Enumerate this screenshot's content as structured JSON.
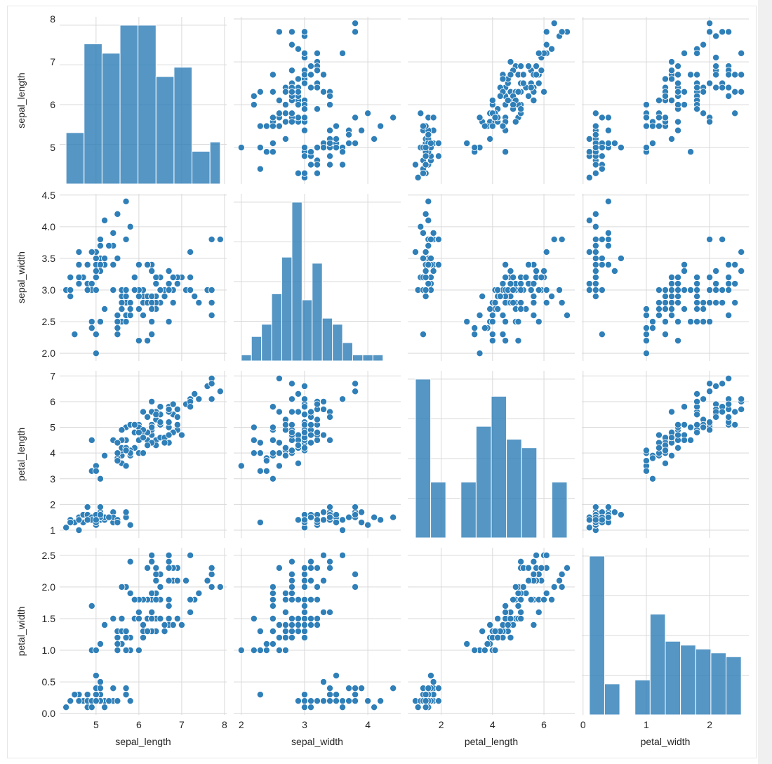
{
  "colors": {
    "accent": "#2f7fb8",
    "grid": "#d9d9d9",
    "bar_edge": "#ffffff",
    "background": "#ffffff"
  },
  "chart_data": {
    "type": "scatter",
    "variables": [
      "sepal_length",
      "sepal_width",
      "petal_length",
      "petal_width"
    ],
    "ranges": {
      "sepal_length": [
        4.15,
        8.05
      ],
      "sepal_width": [
        1.88,
        4.52
      ],
      "petal_length": [
        0.7,
        7.2
      ],
      "petal_width": [
        -0.02,
        2.62
      ]
    },
    "ticks": {
      "sepal_length": [
        5,
        6,
        7,
        8
      ],
      "sepal_width": [
        2,
        3,
        4
      ],
      "petal_length": [
        2,
        4,
        6
      ],
      "petal_width": [
        0,
        1,
        2
      ]
    },
    "ticks_y": {
      "sepal_length": [
        "5",
        "6",
        "7",
        "8"
      ],
      "sepal_width": [
        "2.0",
        "2.5",
        "3.0",
        "3.5",
        "4.0",
        "4.5"
      ],
      "petal_length": [
        "1",
        "2",
        "3",
        "4",
        "5",
        "6",
        "7"
      ],
      "petal_width": [
        "0.0",
        "0.5",
        "1.0",
        "1.5",
        "2.0",
        "2.5"
      ]
    },
    "histograms": {
      "sepal_length": {
        "edges": [
          4.3,
          4.72,
          5.14,
          5.56,
          5.98,
          6.4,
          6.82,
          7.24,
          7.66,
          7.9
        ],
        "counts": [
          11,
          30,
          28,
          34,
          34,
          23,
          25,
          7,
          9
        ]
      },
      "sepal_width": {
        "edges": [
          2.0,
          2.16,
          2.32,
          2.48,
          2.64,
          2.8,
          2.96,
          3.12,
          3.28,
          3.44,
          3.6,
          3.76,
          3.92,
          4.08,
          4.24,
          4.4
        ],
        "counts": [
          1,
          4,
          6,
          11,
          17,
          26,
          10,
          16,
          7,
          6,
          3,
          1,
          1,
          1,
          0
        ]
      },
      "petal_length": {
        "edges": [
          1.0,
          1.59,
          2.18,
          2.77,
          3.36,
          3.95,
          4.54,
          5.13,
          5.72,
          6.31,
          6.9
        ],
        "counts": [
          37,
          13,
          0,
          13,
          26,
          33,
          23,
          21,
          0,
          13
        ]
      },
      "petal_width": {
        "edges": [
          0.1,
          0.34,
          0.58,
          0.82,
          1.06,
          1.3,
          1.54,
          1.78,
          2.02,
          2.26,
          2.5
        ],
        "counts": [
          41,
          8,
          0,
          9,
          26,
          19,
          18,
          17,
          16,
          15
        ]
      }
    },
    "points": [
      [
        5.1,
        3.5,
        1.4,
        0.2
      ],
      [
        4.9,
        3.0,
        1.4,
        0.2
      ],
      [
        4.7,
        3.2,
        1.3,
        0.2
      ],
      [
        4.6,
        3.1,
        1.5,
        0.2
      ],
      [
        5.0,
        3.6,
        1.4,
        0.2
      ],
      [
        5.4,
        3.9,
        1.7,
        0.4
      ],
      [
        4.6,
        3.4,
        1.4,
        0.3
      ],
      [
        5.0,
        3.4,
        1.5,
        0.2
      ],
      [
        4.4,
        2.9,
        1.4,
        0.2
      ],
      [
        4.9,
        3.1,
        1.5,
        0.1
      ],
      [
        5.4,
        3.7,
        1.5,
        0.2
      ],
      [
        4.8,
        3.4,
        1.6,
        0.2
      ],
      [
        4.8,
        3.0,
        1.4,
        0.1
      ],
      [
        4.3,
        3.0,
        1.1,
        0.1
      ],
      [
        5.8,
        4.0,
        1.2,
        0.2
      ],
      [
        5.7,
        4.4,
        1.5,
        0.4
      ],
      [
        5.4,
        3.9,
        1.3,
        0.4
      ],
      [
        5.1,
        3.5,
        1.4,
        0.3
      ],
      [
        5.7,
        3.8,
        1.7,
        0.3
      ],
      [
        5.1,
        3.8,
        1.5,
        0.3
      ],
      [
        5.4,
        3.4,
        1.7,
        0.2
      ],
      [
        5.1,
        3.7,
        1.5,
        0.4
      ],
      [
        4.6,
        3.6,
        1.0,
        0.2
      ],
      [
        5.1,
        3.3,
        1.7,
        0.5
      ],
      [
        4.8,
        3.4,
        1.9,
        0.2
      ],
      [
        5.0,
        3.0,
        1.6,
        0.2
      ],
      [
        5.0,
        3.4,
        1.6,
        0.4
      ],
      [
        5.2,
        3.5,
        1.5,
        0.2
      ],
      [
        5.2,
        3.4,
        1.4,
        0.2
      ],
      [
        4.7,
        3.2,
        1.6,
        0.2
      ],
      [
        4.8,
        3.1,
        1.6,
        0.2
      ],
      [
        5.4,
        3.4,
        1.5,
        0.4
      ],
      [
        5.2,
        4.1,
        1.5,
        0.1
      ],
      [
        5.5,
        4.2,
        1.4,
        0.2
      ],
      [
        4.9,
        3.1,
        1.5,
        0.2
      ],
      [
        5.0,
        3.2,
        1.2,
        0.2
      ],
      [
        5.5,
        3.5,
        1.3,
        0.2
      ],
      [
        4.9,
        3.6,
        1.4,
        0.1
      ],
      [
        4.4,
        3.0,
        1.3,
        0.2
      ],
      [
        5.1,
        3.4,
        1.5,
        0.2
      ],
      [
        5.0,
        3.5,
        1.3,
        0.3
      ],
      [
        4.5,
        2.3,
        1.3,
        0.3
      ],
      [
        4.4,
        3.2,
        1.3,
        0.2
      ],
      [
        5.0,
        3.5,
        1.6,
        0.6
      ],
      [
        5.1,
        3.8,
        1.9,
        0.4
      ],
      [
        4.8,
        3.0,
        1.4,
        0.3
      ],
      [
        5.1,
        3.8,
        1.6,
        0.2
      ],
      [
        4.6,
        3.2,
        1.4,
        0.2
      ],
      [
        5.3,
        3.7,
        1.5,
        0.2
      ],
      [
        5.0,
        3.3,
        1.4,
        0.2
      ],
      [
        7.0,
        3.2,
        4.7,
        1.4
      ],
      [
        6.4,
        3.2,
        4.5,
        1.5
      ],
      [
        6.9,
        3.1,
        4.9,
        1.5
      ],
      [
        5.5,
        2.3,
        4.0,
        1.3
      ],
      [
        6.5,
        2.8,
        4.6,
        1.5
      ],
      [
        5.7,
        2.8,
        4.5,
        1.3
      ],
      [
        6.3,
        3.3,
        4.7,
        1.6
      ],
      [
        4.9,
        2.4,
        3.3,
        1.0
      ],
      [
        6.6,
        2.9,
        4.6,
        1.3
      ],
      [
        5.2,
        2.7,
        3.9,
        1.4
      ],
      [
        5.0,
        2.0,
        3.5,
        1.0
      ],
      [
        5.9,
        3.0,
        4.2,
        1.5
      ],
      [
        6.0,
        2.2,
        4.0,
        1.0
      ],
      [
        6.1,
        2.9,
        4.7,
        1.4
      ],
      [
        5.6,
        2.9,
        3.6,
        1.3
      ],
      [
        6.7,
        3.1,
        4.4,
        1.4
      ],
      [
        5.6,
        3.0,
        4.5,
        1.5
      ],
      [
        5.8,
        2.7,
        4.1,
        1.0
      ],
      [
        6.2,
        2.2,
        4.5,
        1.5
      ],
      [
        5.6,
        2.5,
        3.9,
        1.1
      ],
      [
        5.9,
        3.2,
        4.8,
        1.8
      ],
      [
        6.1,
        2.8,
        4.0,
        1.3
      ],
      [
        6.3,
        2.5,
        4.9,
        1.5
      ],
      [
        6.1,
        2.8,
        4.7,
        1.2
      ],
      [
        6.4,
        2.9,
        4.3,
        1.3
      ],
      [
        6.6,
        3.0,
        4.4,
        1.4
      ],
      [
        6.8,
        2.8,
        4.8,
        1.4
      ],
      [
        6.7,
        3.0,
        5.0,
        1.7
      ],
      [
        6.0,
        2.9,
        4.5,
        1.5
      ],
      [
        5.7,
        2.6,
        3.5,
        1.0
      ],
      [
        5.5,
        2.4,
        3.8,
        1.1
      ],
      [
        5.5,
        2.4,
        3.7,
        1.0
      ],
      [
        5.8,
        2.7,
        3.9,
        1.2
      ],
      [
        6.0,
        2.7,
        5.1,
        1.6
      ],
      [
        5.4,
        3.0,
        4.5,
        1.5
      ],
      [
        6.0,
        3.4,
        4.5,
        1.6
      ],
      [
        6.7,
        3.1,
        4.7,
        1.5
      ],
      [
        6.3,
        2.3,
        4.4,
        1.3
      ],
      [
        5.6,
        3.0,
        4.1,
        1.3
      ],
      [
        5.5,
        2.5,
        4.0,
        1.3
      ],
      [
        5.5,
        2.6,
        4.4,
        1.2
      ],
      [
        6.1,
        3.0,
        4.6,
        1.4
      ],
      [
        5.8,
        2.6,
        4.0,
        1.2
      ],
      [
        5.0,
        2.3,
        3.3,
        1.0
      ],
      [
        5.6,
        2.7,
        4.2,
        1.3
      ],
      [
        5.7,
        3.0,
        4.2,
        1.2
      ],
      [
        5.7,
        2.9,
        4.2,
        1.3
      ],
      [
        6.2,
        2.9,
        4.3,
        1.3
      ],
      [
        5.1,
        2.5,
        3.0,
        1.1
      ],
      [
        5.7,
        2.8,
        4.1,
        1.3
      ],
      [
        6.3,
        3.3,
        6.0,
        2.5
      ],
      [
        5.8,
        2.7,
        5.1,
        1.9
      ],
      [
        7.1,
        3.0,
        5.9,
        2.1
      ],
      [
        6.3,
        2.9,
        5.6,
        1.8
      ],
      [
        6.5,
        3.0,
        5.8,
        2.2
      ],
      [
        7.6,
        3.0,
        6.6,
        2.1
      ],
      [
        4.9,
        2.5,
        4.5,
        1.7
      ],
      [
        7.3,
        2.9,
        6.3,
        1.8
      ],
      [
        6.7,
        2.5,
        5.8,
        1.8
      ],
      [
        7.2,
        3.6,
        6.1,
        2.5
      ],
      [
        6.5,
        3.2,
        5.1,
        2.0
      ],
      [
        6.4,
        2.7,
        5.3,
        1.9
      ],
      [
        6.8,
        3.0,
        5.5,
        2.1
      ],
      [
        5.7,
        2.5,
        5.0,
        2.0
      ],
      [
        5.8,
        2.8,
        5.1,
        2.4
      ],
      [
        6.4,
        3.2,
        5.3,
        2.3
      ],
      [
        6.5,
        3.0,
        5.5,
        1.8
      ],
      [
        7.7,
        3.8,
        6.7,
        2.2
      ],
      [
        7.7,
        2.6,
        6.9,
        2.3
      ],
      [
        6.0,
        2.2,
        5.0,
        1.5
      ],
      [
        6.9,
        3.2,
        5.7,
        2.3
      ],
      [
        5.6,
        2.8,
        4.9,
        2.0
      ],
      [
        7.7,
        2.8,
        6.7,
        2.0
      ],
      [
        6.3,
        2.7,
        4.9,
        1.8
      ],
      [
        6.7,
        3.3,
        5.7,
        2.1
      ],
      [
        7.2,
        3.2,
        6.0,
        1.8
      ],
      [
        6.2,
        2.8,
        4.8,
        1.8
      ],
      [
        6.1,
        3.0,
        4.9,
        1.8
      ],
      [
        6.4,
        2.8,
        5.6,
        2.1
      ],
      [
        7.2,
        3.0,
        5.8,
        1.6
      ],
      [
        7.4,
        2.8,
        6.1,
        1.9
      ],
      [
        7.9,
        3.8,
        6.4,
        2.0
      ],
      [
        6.4,
        2.8,
        5.6,
        2.2
      ],
      [
        6.3,
        2.8,
        5.1,
        1.5
      ],
      [
        6.1,
        2.6,
        5.6,
        1.4
      ],
      [
        7.7,
        3.0,
        6.1,
        2.3
      ],
      [
        6.3,
        3.4,
        5.6,
        2.4
      ],
      [
        6.4,
        3.1,
        5.5,
        1.8
      ],
      [
        6.0,
        3.0,
        4.8,
        1.8
      ],
      [
        6.9,
        3.1,
        5.4,
        2.1
      ],
      [
        6.7,
        3.1,
        5.6,
        2.4
      ],
      [
        6.9,
        3.1,
        5.1,
        2.3
      ],
      [
        5.8,
        2.7,
        5.1,
        1.9
      ],
      [
        6.8,
        3.2,
        5.9,
        2.3
      ],
      [
        6.7,
        3.3,
        5.7,
        2.5
      ],
      [
        6.7,
        3.0,
        5.2,
        2.3
      ],
      [
        6.3,
        2.5,
        5.0,
        1.9
      ],
      [
        6.5,
        3.0,
        5.2,
        2.0
      ],
      [
        6.2,
        3.4,
        5.4,
        2.3
      ],
      [
        5.9,
        3.0,
        5.1,
        1.8
      ]
    ]
  }
}
